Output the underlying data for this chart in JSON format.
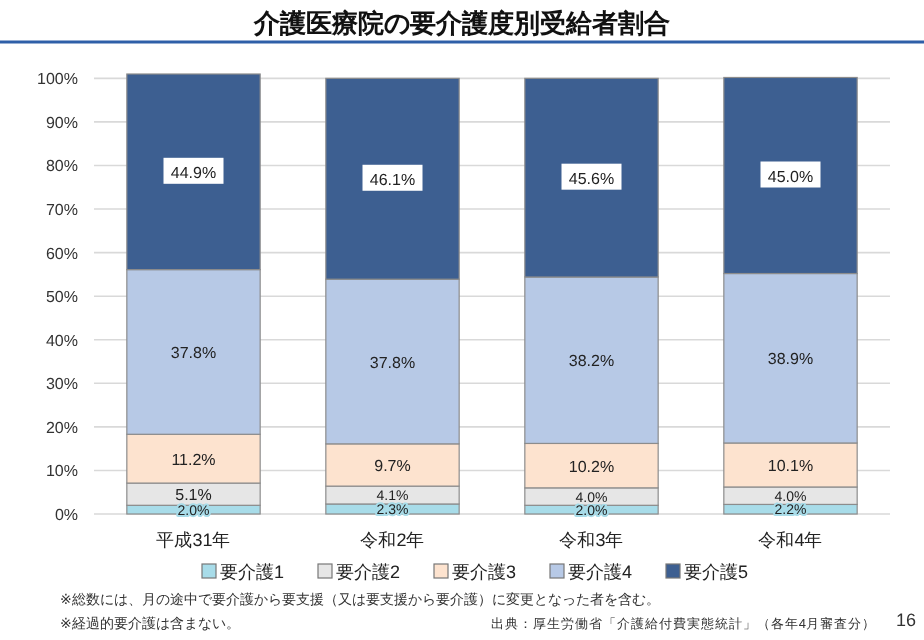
{
  "chart_data": {
    "type": "bar",
    "stacked": true,
    "title": "介護医療院の要介護度別受給者割合",
    "categories": [
      "平成31年",
      "令和2年",
      "令和3年",
      "令和4年"
    ],
    "series": [
      {
        "name": "要介護1",
        "color": "#a8dce9",
        "values": [
          2.0,
          2.3,
          2.0,
          2.2
        ],
        "value_labels": [
          "2.0%",
          "2.3%",
          "2.0%",
          "2.2%"
        ]
      },
      {
        "name": "要介護2",
        "color": "#e6e6e6",
        "values": [
          5.1,
          4.1,
          4.0,
          4.0
        ],
        "value_labels": [
          "5.1%",
          "4.1%",
          "4.0%",
          "4.0%"
        ]
      },
      {
        "name": "要介護3",
        "color": "#fde3cf",
        "values": [
          11.2,
          9.7,
          10.2,
          10.1
        ],
        "value_labels": [
          "11.2%",
          "9.7%",
          "10.2%",
          "10.1%"
        ]
      },
      {
        "name": "要介護4",
        "color": "#b7c9e6",
        "values": [
          37.8,
          37.8,
          38.2,
          38.9
        ],
        "value_labels": [
          "37.8%",
          "37.8%",
          "38.2%",
          "38.9%"
        ]
      },
      {
        "name": "要介護5",
        "color": "#3d5f91",
        "values": [
          44.9,
          46.1,
          45.6,
          45.0
        ],
        "value_labels": [
          "44.9%",
          "46.1%",
          "45.6%",
          "45.0%"
        ]
      }
    ],
    "ylim": [
      0,
      101
    ],
    "yticks": [
      {
        "value": 0,
        "label": "0%"
      },
      {
        "value": 10,
        "label": "10%"
      },
      {
        "value": 20,
        "label": "20%"
      },
      {
        "value": 30,
        "label": "30%"
      },
      {
        "value": 40,
        "label": "40%"
      },
      {
        "value": 50,
        "label": "50%"
      },
      {
        "value": 60,
        "label": "60%"
      },
      {
        "value": 70,
        "label": "70%"
      },
      {
        "value": 80,
        "label": "80%"
      },
      {
        "value": 90,
        "label": "90%"
      },
      {
        "value": 100,
        "label": "100%"
      }
    ],
    "grid": "y",
    "legend": "bottom",
    "annotations": [
      "※総数には、月の途中で要介護から要支援（又は要支援から要介護）に変更となった者を含む。",
      "※経過的要介護は含まない。",
      "出典：厚生労働省「介護給付費実態統計」（各年4月審査分）",
      "16"
    ]
  }
}
